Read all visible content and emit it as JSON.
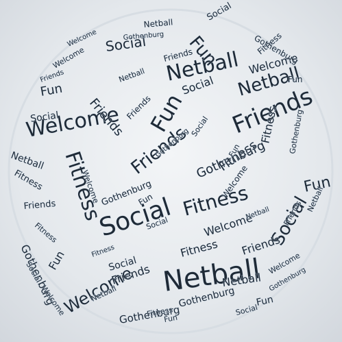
{
  "words": {
    "netball": "Netball",
    "social": "Social",
    "fun": "Fun",
    "friends": "Friends",
    "welcome": "Welcome",
    "fitness": "Fitness",
    "gothenburg": "Gothenburg"
  },
  "colors": {
    "text": "#1f2a36",
    "halo": "#cfe0f2",
    "background": "#e6eaee"
  }
}
